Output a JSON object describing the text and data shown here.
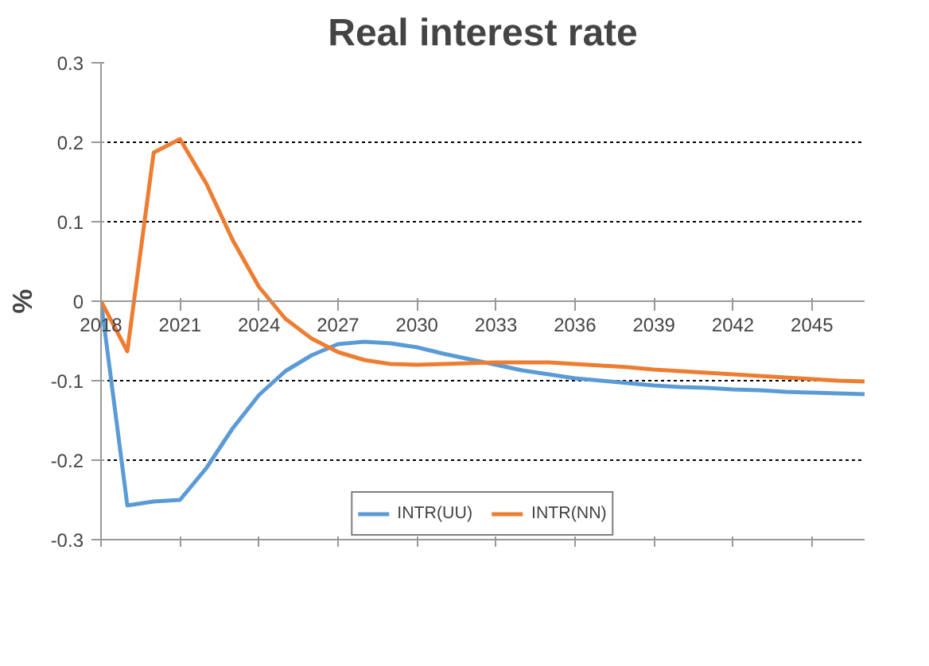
{
  "chart_data": {
    "type": "line",
    "title": "Real interest rate",
    "ylabel": "%",
    "x": [
      2018,
      2019,
      2020,
      2021,
      2022,
      2023,
      2024,
      2025,
      2026,
      2027,
      2028,
      2029,
      2030,
      2031,
      2032,
      2033,
      2034,
      2035,
      2036,
      2037,
      2038,
      2039,
      2040,
      2041,
      2042,
      2043,
      2044,
      2045,
      2046,
      2047
    ],
    "series": [
      {
        "name": "INTR(UU)",
        "color": "#5b9bd5",
        "values": [
          0,
          -0.257,
          -0.252,
          -0.25,
          -0.21,
          -0.16,
          -0.118,
          -0.088,
          -0.068,
          -0.054,
          -0.051,
          -0.053,
          -0.058,
          -0.066,
          -0.073,
          -0.08,
          -0.087,
          -0.092,
          -0.097,
          -0.1,
          -0.103,
          -0.106,
          -0.108,
          -0.109,
          -0.111,
          -0.112,
          -0.114,
          -0.115,
          -0.116,
          -0.117
        ]
      },
      {
        "name": "INTR(NN)",
        "color": "#ed7d31",
        "values": [
          0,
          -0.063,
          0.187,
          0.204,
          0.148,
          0.077,
          0.018,
          -0.022,
          -0.047,
          -0.064,
          -0.074,
          -0.079,
          -0.08,
          -0.079,
          -0.078,
          -0.077,
          -0.077,
          -0.077,
          -0.079,
          -0.081,
          -0.083,
          -0.086,
          -0.088,
          -0.09,
          -0.092,
          -0.094,
          -0.096,
          -0.098,
          -0.1,
          -0.101
        ]
      }
    ],
    "xlim": [
      2018,
      2047
    ],
    "xticks": [
      2018,
      2021,
      2024,
      2027,
      2030,
      2033,
      2036,
      2039,
      2042,
      2045
    ],
    "ylim": [
      -0.3,
      0.3
    ],
    "yticks": [
      -0.3,
      -0.2,
      -0.1,
      0,
      0.1,
      0.2,
      0.3
    ],
    "grid": "y",
    "legend": "bottom",
    "marker": "none",
    "line_style": "solid"
  }
}
